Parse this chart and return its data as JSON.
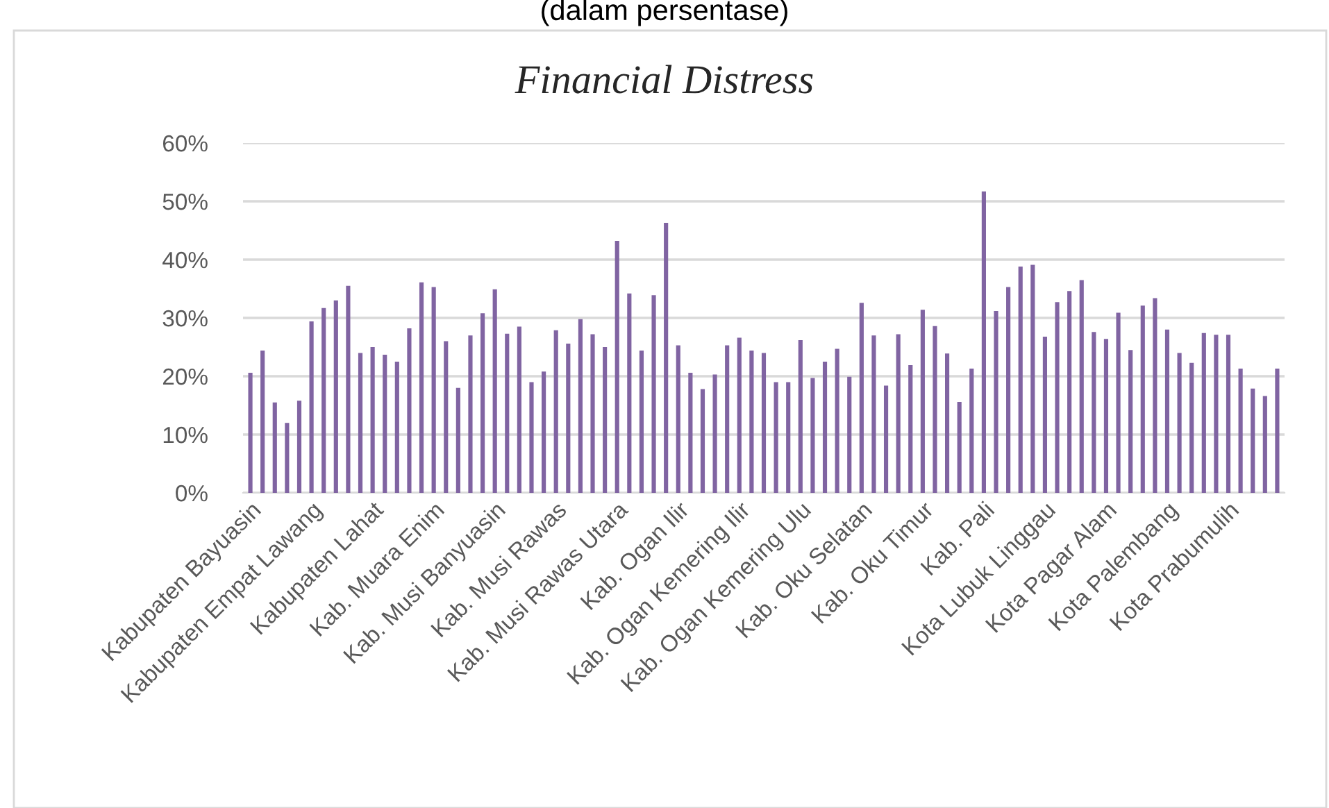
{
  "chart_data": {
    "type": "bar",
    "title": "Financial Distress",
    "annotations": [
      "(dalam persentase)"
    ],
    "categories": [
      "Kabupaten Bayuasin",
      null,
      null,
      null,
      null,
      "Kabupaten Empat Lawang",
      null,
      null,
      null,
      null,
      "Kabupaten Lahat",
      null,
      null,
      null,
      null,
      "Kab. Muara Enim",
      null,
      null,
      null,
      null,
      "Kab. Musi Banyuasin",
      null,
      null,
      null,
      null,
      "Kab. Musi Rawas",
      null,
      null,
      null,
      null,
      "Kab. Musi Rawas Utara",
      null,
      null,
      null,
      null,
      "Kab. Ogan Ilir",
      null,
      null,
      null,
      null,
      "Kab. Ogan Kemering Ilir",
      null,
      null,
      null,
      null,
      "Kab. Ogan Kemering Ulu",
      null,
      null,
      null,
      null,
      "Kab. Oku Selatan",
      null,
      null,
      null,
      null,
      "Kab. Oku Timur",
      null,
      null,
      null,
      null,
      "Kab. Pali",
      null,
      null,
      null,
      null,
      "Kota Lubuk Linggau",
      null,
      null,
      null,
      null,
      "Kota Pagar Alam",
      null,
      null,
      null,
      null,
      "Kota Palembang",
      null,
      null,
      null,
      null,
      "Kota Prabumulih",
      null,
      null,
      null,
      null
    ],
    "values": [
      20.6,
      24.4,
      15.5,
      12.0,
      15.8,
      29.4,
      31.7,
      33.0,
      35.5,
      24.0,
      25.0,
      23.7,
      22.5,
      28.2,
      36.1,
      35.3,
      26.0,
      18.0,
      27.0,
      30.8,
      34.9,
      27.3,
      28.5,
      19.0,
      20.8,
      27.9,
      25.6,
      29.8,
      27.2,
      25.0,
      43.2,
      34.2,
      24.4,
      33.9,
      46.3,
      25.3,
      20.6,
      17.8,
      20.3,
      25.3,
      26.6,
      24.4,
      24.0,
      19.0,
      19.0,
      26.2,
      19.7,
      22.5,
      24.7,
      19.9,
      32.6,
      27.0,
      18.4,
      27.2,
      21.9,
      31.4,
      28.6,
      23.9,
      15.6,
      21.3,
      51.7,
      31.2,
      35.3,
      38.8,
      39.1,
      26.8,
      32.7,
      34.6,
      36.5,
      27.6,
      26.4,
      30.9,
      24.5,
      32.1,
      33.4,
      28.0,
      24.0,
      22.3,
      27.4,
      27.1,
      27.1,
      21.3,
      17.9,
      16.6,
      21.3
    ],
    "color": "#8064a2",
    "ylim": [
      0,
      60
    ],
    "yticks": [
      {
        "value": 0,
        "label": "0%"
      },
      {
        "value": 10,
        "label": "10%"
      },
      {
        "value": 20,
        "label": "20%"
      },
      {
        "value": 30,
        "label": "30%"
      },
      {
        "value": 40,
        "label": "40%"
      },
      {
        "value": 50,
        "label": "50%"
      },
      {
        "value": 60,
        "label": "60%"
      }
    ],
    "grid": "y",
    "legend": false
  }
}
